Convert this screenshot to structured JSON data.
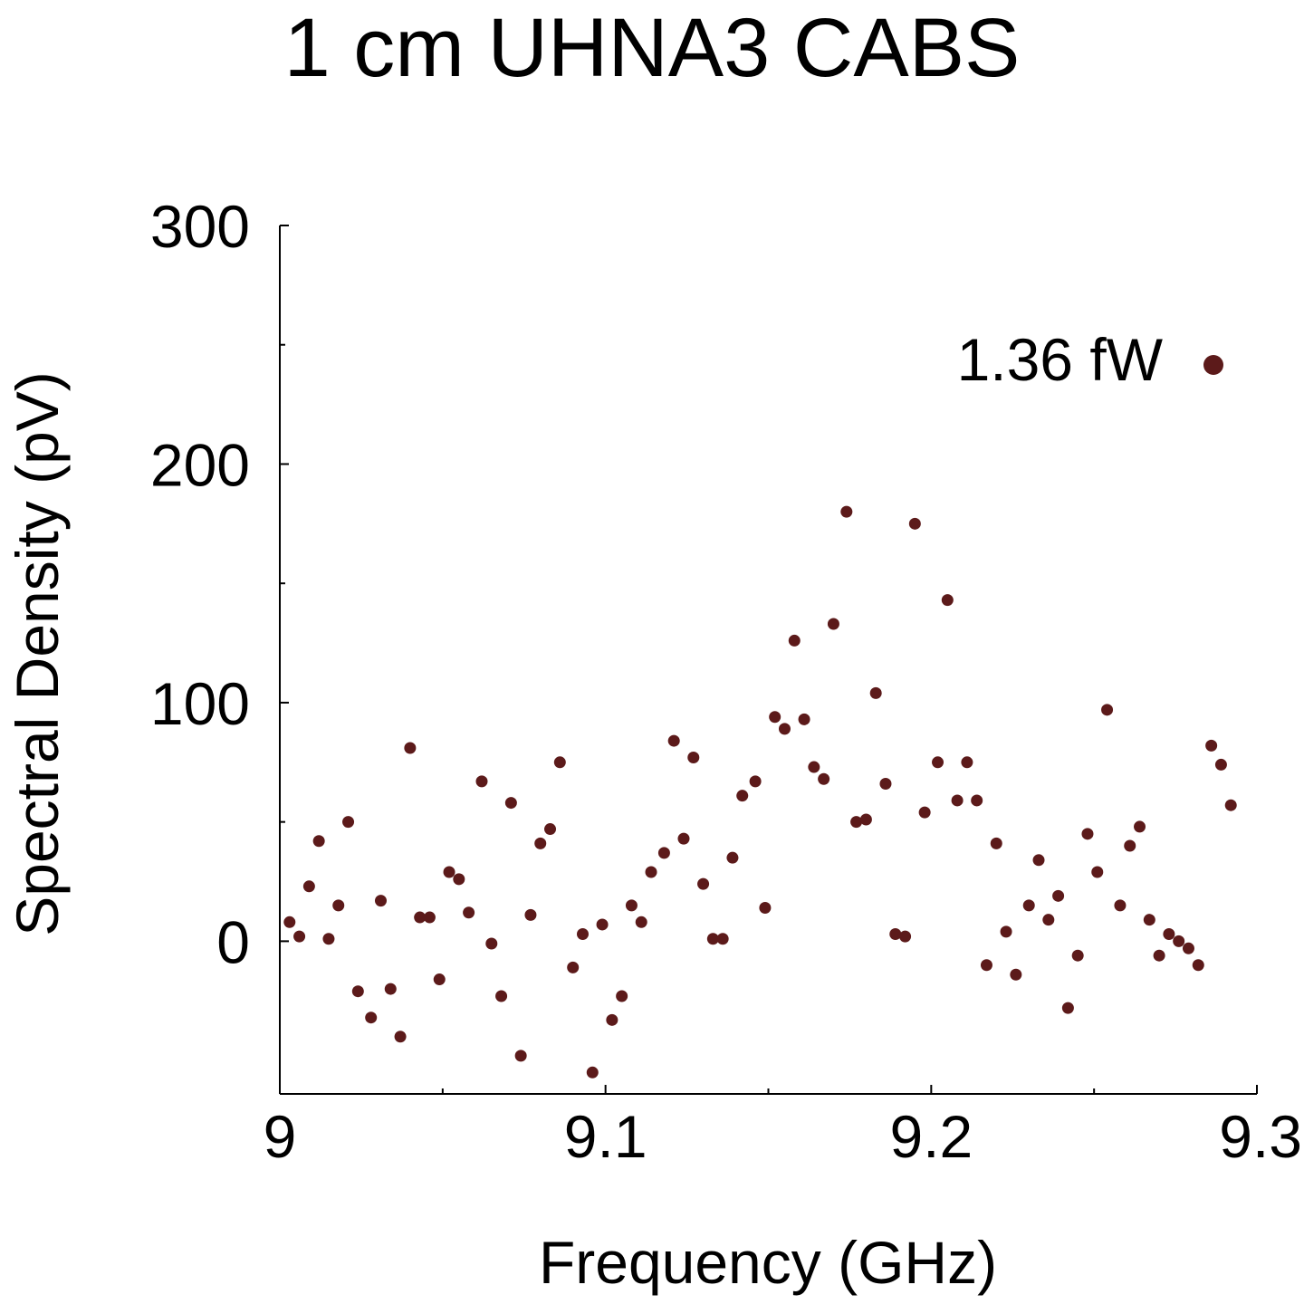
{
  "chart_data": {
    "type": "scatter",
    "title": "1 cm UHNA3 CABS",
    "xlabel": "Frequency (GHz)",
    "ylabel": "Spectral Density (pV)",
    "xlim": [
      9.0,
      9.3
    ],
    "ylim": [
      -64,
      300
    ],
    "x_ticks": [
      "9",
      "9.1",
      "9.2",
      "9.3"
    ],
    "y_ticks": [
      "0",
      "100",
      "200",
      "300"
    ],
    "grid": false,
    "legend_position": "top-right",
    "series": [
      {
        "name": "1.36 fW",
        "color": "#5c1a1a",
        "x": [
          9.003,
          9.006,
          9.009,
          9.012,
          9.015,
          9.018,
          9.021,
          9.024,
          9.028,
          9.031,
          9.034,
          9.037,
          9.04,
          9.043,
          9.046,
          9.049,
          9.052,
          9.055,
          9.058,
          9.062,
          9.065,
          9.068,
          9.071,
          9.074,
          9.077,
          9.08,
          9.083,
          9.086,
          9.09,
          9.093,
          9.096,
          9.099,
          9.102,
          9.105,
          9.108,
          9.111,
          9.114,
          9.118,
          9.121,
          9.124,
          9.127,
          9.13,
          9.133,
          9.136,
          9.139,
          9.142,
          9.146,
          9.149,
          9.152,
          9.155,
          9.158,
          9.161,
          9.164,
          9.167,
          9.17,
          9.174,
          9.177,
          9.18,
          9.183,
          9.186,
          9.189,
          9.192,
          9.195,
          9.198,
          9.202,
          9.205,
          9.208,
          9.211,
          9.214,
          9.217,
          9.22,
          9.223,
          9.226,
          9.23,
          9.233,
          9.236,
          9.239,
          9.242,
          9.245,
          9.248,
          9.251,
          9.254,
          9.258,
          9.261,
          9.264,
          9.267,
          9.27,
          9.273,
          9.276,
          9.279,
          9.282,
          9.286,
          9.289,
          9.292
        ],
        "y": [
          8,
          2,
          23,
          42,
          1,
          15,
          50,
          -21,
          -32,
          17,
          -20,
          -40,
          81,
          10,
          10,
          -16,
          29,
          26,
          12,
          67,
          -1,
          -23,
          58,
          -48,
          11,
          41,
          47,
          75,
          -11,
          3,
          -55,
          7,
          -33,
          -23,
          15,
          8,
          29,
          37,
          84,
          43,
          77,
          24,
          1,
          1,
          35,
          61,
          67,
          14,
          94,
          89,
          126,
          93,
          73,
          68,
          133,
          180,
          50,
          51,
          104,
          66,
          3,
          2,
          175,
          54,
          75,
          143,
          59,
          75,
          59,
          -10,
          41,
          4,
          -14,
          15,
          34,
          9,
          19,
          -28,
          -6,
          45,
          29,
          97,
          15,
          40,
          48,
          9,
          -6,
          3,
          0,
          -3,
          -10,
          82,
          74,
          57
        ]
      }
    ]
  }
}
